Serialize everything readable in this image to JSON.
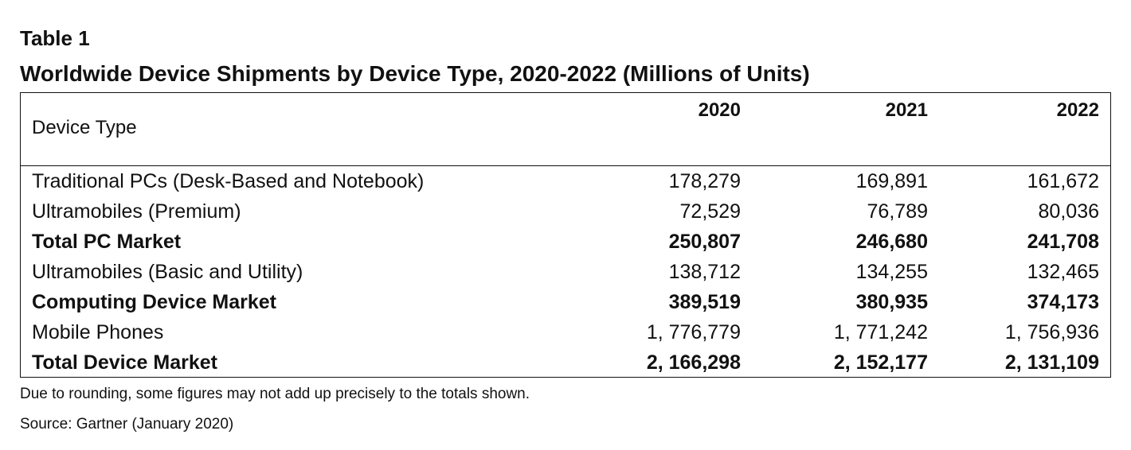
{
  "table": {
    "label": "Table 1",
    "title": "Worldwide Device Shipments by Device Type, 2020-2022 (Millions of Units)",
    "header": {
      "device_type": "Device Type",
      "years": [
        "2020",
        "2021",
        "2022"
      ]
    },
    "rows": [
      {
        "label": "Traditional PCs (Desk-Based and Notebook)",
        "values": [
          "178,279",
          "169,891",
          "161,672"
        ],
        "bold": false
      },
      {
        "label": "Ultramobiles (Premium)",
        "values": [
          "72,529",
          "76,789",
          "80,036"
        ],
        "bold": false
      },
      {
        "label": "Total PC Market",
        "values": [
          "250,807",
          "246,680",
          "241,708"
        ],
        "bold": true
      },
      {
        "label": "Ultramobiles (Basic and Utility)",
        "values": [
          "138,712",
          "134,255",
          "132,465"
        ],
        "bold": false
      },
      {
        "label": "Computing Device Market",
        "values": [
          "389,519",
          "380,935",
          "374,173"
        ],
        "bold": true
      },
      {
        "label": "Mobile Phones",
        "values": [
          "1, 776,779",
          "1, 771,242",
          "1, 756,936"
        ],
        "bold": false
      },
      {
        "label": "Total Device Market",
        "values": [
          "2, 166,298",
          "2, 152,177",
          "2, 131,109"
        ],
        "bold": true
      }
    ],
    "note": "Due to rounding, some figures may not add up precisely to the totals shown.",
    "source": "Source: Gartner (January 2020)"
  }
}
